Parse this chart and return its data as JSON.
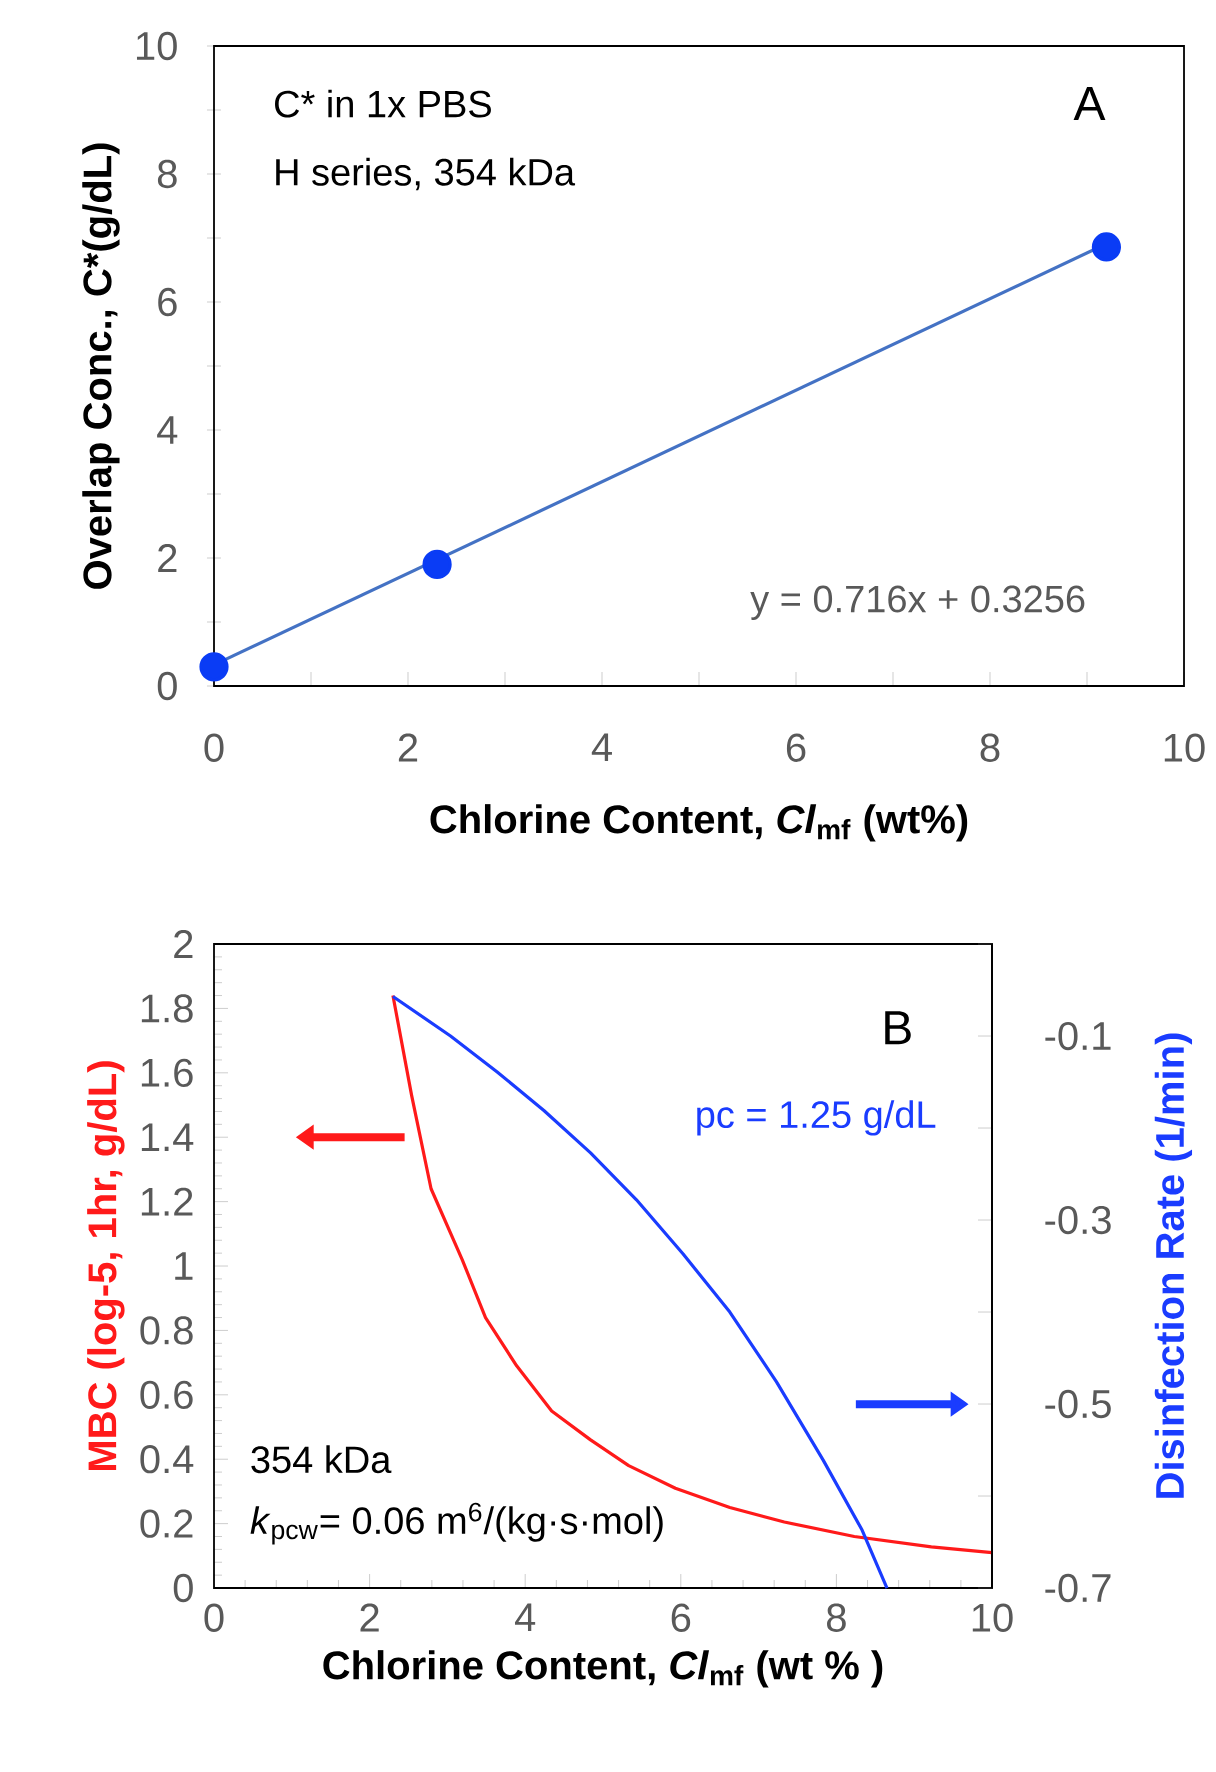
{
  "chart_data": [
    {
      "type": "scatter",
      "xlabel": "Chlorine Content, *Cl*$_{mf}$  (wt%)",
      "ylabel": "Overlap Conc., C*(g/dL)",
      "xlim": [
        0,
        10
      ],
      "ylim": [
        0,
        10
      ],
      "xticks": [
        0,
        {
          "value": 1,
          "label": null
        },
        2,
        {
          "value": 3,
          "label": null
        },
        4,
        {
          "value": 5,
          "label": null
        },
        6,
        {
          "value": 7,
          "label": null
        },
        8,
        {
          "value": 9,
          "label": null
        },
        10
      ],
      "yticks": [
        0,
        {
          "value": 1,
          "label": null
        },
        2,
        {
          "value": 3,
          "label": null
        },
        4,
        {
          "value": 5,
          "label": null
        },
        6,
        {
          "value": 7,
          "label": null
        },
        8,
        {
          "value": 9,
          "label": null
        },
        10
      ],
      "annotations": [
        "C* in 1x PBS",
        "H series, 354 kDa",
        "A",
        "y = 0.716x + 0.3256"
      ],
      "series": [
        {
          "type": "scatter",
          "marker": "circle",
          "color": "#0a3cf5",
          "x": [
            0,
            2.3,
            9.2
          ],
          "values": [
            0.3,
            1.9,
            6.86
          ]
        },
        {
          "type": "line",
          "color": "#4472c4",
          "marker": "none",
          "x": [
            0,
            9.2
          ],
          "values": [
            0.33,
            6.91
          ]
        }
      ]
    },
    {
      "type": "line",
      "xlabel": "Chlorine Content, *Cl*$_{mf}$ (wt % )",
      "ylabel": "MBC  (log-5, 1hr, g/dL)",
      "y2label": "Disinfection Rate (1/min)",
      "xlim": [
        0,
        10
      ],
      "xticks": [
        0,
        2,
        4,
        6,
        8,
        10
      ],
      "ylim": [
        0,
        2
      ],
      "yticks": [
        0,
        0.2,
        0.4,
        0.6,
        0.8,
        1,
        1.2,
        1.4,
        1.6,
        1.8,
        2
      ],
      "y2lim": [
        -0.7,
        0
      ],
      "y2ticks": [
        -0.7,
        {
          "value": -0.6,
          "label": null
        },
        -0.5,
        {
          "value": -0.4,
          "label": null
        },
        -0.3,
        {
          "value": -0.2,
          "label": null
        },
        -0.1,
        {
          "value": 0,
          "label": null
        }
      ],
      "annotations": [
        "B",
        "pc = 1.25 g/dL",
        "354 kDa",
        "*k*$_{pcw}$= 0.06 m$^{6}$/(kg·s·mol)"
      ],
      "series": [
        {
          "color": "#ff1a1a",
          "x": [
            2.3,
            2.54,
            2.79,
            3.19,
            3.49,
            3.89,
            4.34,
            4.84,
            5.33,
            5.93,
            6.63,
            7.33,
            8.23,
            9.22,
            10
          ],
          "values": [
            1.84,
            1.53,
            1.24,
            1.02,
            0.84,
            0.69,
            0.55,
            0.46,
            0.38,
            0.31,
            0.25,
            0.205,
            0.16,
            0.128,
            0.11
          ]
        },
        {
          "color": "#1a3cff",
          "axis": "y2",
          "x": [
            2.3,
            3.04,
            3.64,
            4.24,
            4.84,
            5.43,
            6.03,
            6.63,
            7.23,
            7.83,
            8.33,
            8.65
          ],
          "values": [
            -0.057,
            -0.1,
            -0.139,
            -0.181,
            -0.227,
            -0.278,
            -0.337,
            -0.4,
            -0.476,
            -0.561,
            -0.637,
            -0.7
          ]
        }
      ]
    }
  ]
}
